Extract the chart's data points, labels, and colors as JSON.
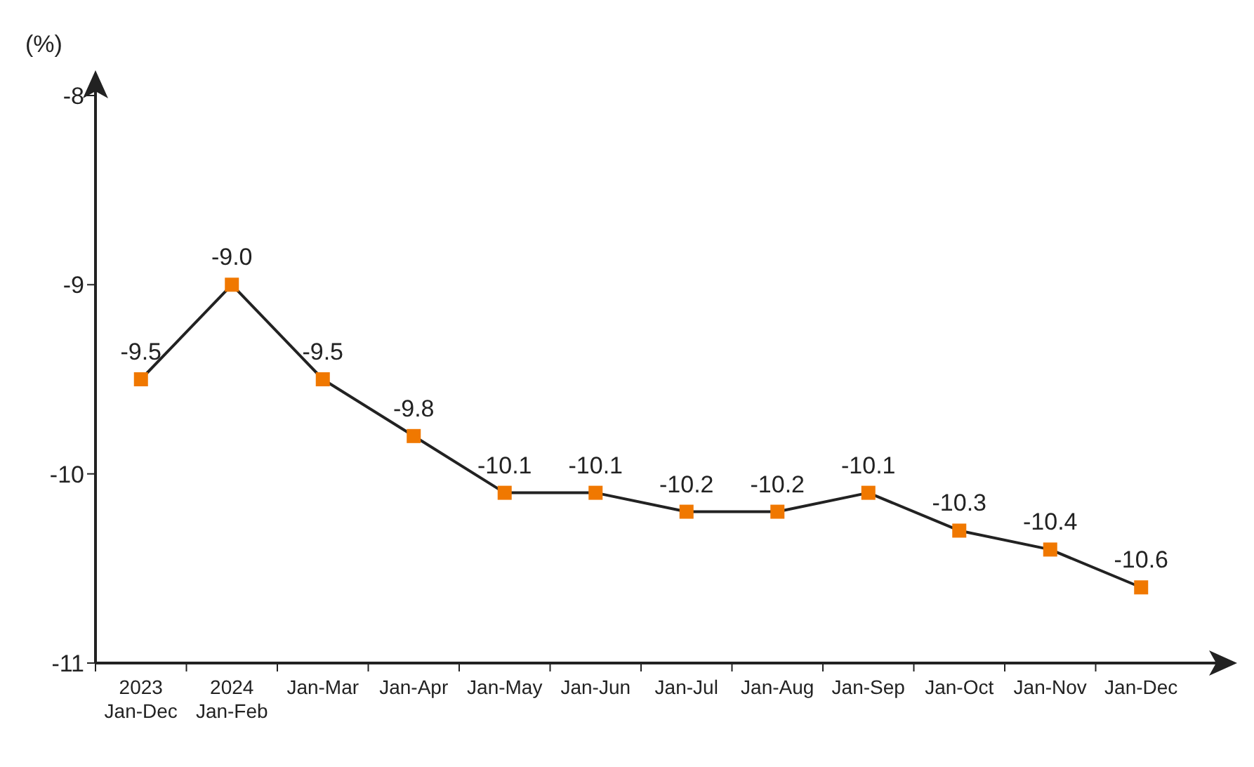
{
  "chart_data": {
    "type": "line",
    "ylabel": "(%)",
    "categories": [
      "2023\nJan-Dec",
      "2024\nJan-Feb",
      "Jan-Mar",
      "Jan-Apr",
      "Jan-May",
      "Jan-Jun",
      "Jan-Jul",
      "Jan-Aug",
      "Jan-Sep",
      "Jan-Oct",
      "Jan-Nov",
      "Jan-Dec"
    ],
    "series": [
      {
        "color": "#f07800",
        "values": [
          -9.5,
          -9.0,
          -9.5,
          -9.8,
          -10.1,
          -10.1,
          -10.2,
          -10.2,
          -10.1,
          -10.3,
          -10.4,
          -10.6
        ],
        "value_labels": [
          "-9.5",
          "-9.0",
          "-9.5",
          "-9.8",
          "-10.1",
          "-10.1",
          "-10.2",
          "-10.2",
          "-10.1",
          "-10.3",
          "-10.4",
          "-10.6"
        ]
      }
    ],
    "ylim": [
      -11,
      -8
    ],
    "yticks": [
      -11,
      -10,
      -9,
      -8
    ],
    "grid": false,
    "legend": false,
    "marker": "square",
    "line_style": "solid"
  }
}
